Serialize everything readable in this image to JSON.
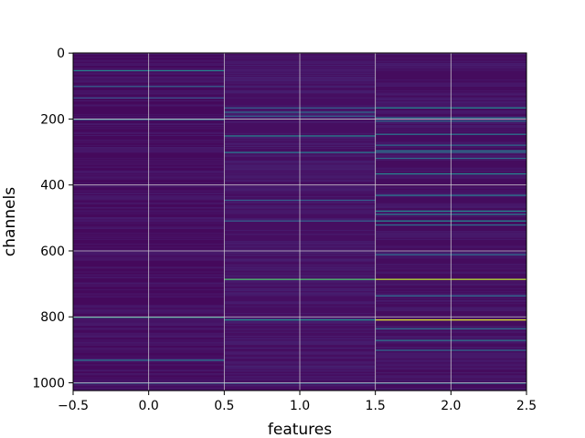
{
  "chart_data": {
    "type": "heatmap",
    "title": "",
    "xlabel": "features",
    "ylabel": "channels",
    "xlim": [
      -0.5,
      2.5
    ],
    "ylim": [
      1023.5,
      -0.5
    ],
    "x_ticks": [
      -0.5,
      0.0,
      0.5,
      1.0,
      1.5,
      2.0,
      2.5
    ],
    "x_tick_labels": [
      "−0.5",
      "0.0",
      "0.5",
      "1.0",
      "1.5",
      "2.0",
      "2.5"
    ],
    "y_ticks": [
      0,
      200,
      400,
      600,
      800,
      1000
    ],
    "y_tick_labels": [
      "0",
      "200",
      "400",
      "600",
      "800",
      "1000"
    ],
    "grid": true,
    "colormap": "viridis",
    "columns": [
      0,
      1,
      2
    ],
    "rows": 1024,
    "value_range": [
      0,
      1
    ],
    "background_levels": [
      0.03,
      0.05,
      0.04
    ],
    "bright_rows": [
      {
        "column": 0,
        "channel": 52,
        "value": 0.45
      },
      {
        "column": 0,
        "channel": 100,
        "value": 0.3
      },
      {
        "column": 0,
        "channel": 135,
        "value": 0.25
      },
      {
        "column": 0,
        "channel": 200,
        "value": 0.4
      },
      {
        "column": 0,
        "channel": 800,
        "value": 0.55
      },
      {
        "column": 0,
        "channel": 930,
        "value": 0.4
      },
      {
        "column": 0,
        "channel": 1000,
        "value": 0.3
      },
      {
        "column": 1,
        "channel": 165,
        "value": 0.3
      },
      {
        "column": 1,
        "channel": 178,
        "value": 0.35
      },
      {
        "column": 1,
        "channel": 190,
        "value": 0.3
      },
      {
        "column": 1,
        "channel": 250,
        "value": 0.45
      },
      {
        "column": 1,
        "channel": 300,
        "value": 0.4
      },
      {
        "column": 1,
        "channel": 445,
        "value": 0.3
      },
      {
        "column": 1,
        "channel": 508,
        "value": 0.3
      },
      {
        "column": 1,
        "channel": 685,
        "value": 0.72
      },
      {
        "column": 1,
        "channel": 808,
        "value": 0.5
      },
      {
        "column": 1,
        "channel": 1000,
        "value": 0.3
      },
      {
        "column": 2,
        "channel": 165,
        "value": 0.45
      },
      {
        "column": 2,
        "channel": 195,
        "value": 0.4
      },
      {
        "column": 2,
        "channel": 205,
        "value": 0.35
      },
      {
        "column": 2,
        "channel": 245,
        "value": 0.4
      },
      {
        "column": 2,
        "channel": 278,
        "value": 0.35
      },
      {
        "column": 2,
        "channel": 295,
        "value": 0.4
      },
      {
        "column": 2,
        "channel": 300,
        "value": 0.35
      },
      {
        "column": 2,
        "channel": 318,
        "value": 0.35
      },
      {
        "column": 2,
        "channel": 365,
        "value": 0.45
      },
      {
        "column": 2,
        "channel": 430,
        "value": 0.4
      },
      {
        "column": 2,
        "channel": 478,
        "value": 0.45
      },
      {
        "column": 2,
        "channel": 488,
        "value": 0.4
      },
      {
        "column": 2,
        "channel": 508,
        "value": 0.45
      },
      {
        "column": 2,
        "channel": 520,
        "value": 0.35
      },
      {
        "column": 2,
        "channel": 610,
        "value": 0.35
      },
      {
        "column": 2,
        "channel": 685,
        "value": 0.9
      },
      {
        "column": 2,
        "channel": 735,
        "value": 0.35
      },
      {
        "column": 2,
        "channel": 808,
        "value": 0.95
      },
      {
        "column": 2,
        "channel": 835,
        "value": 0.35
      },
      {
        "column": 2,
        "channel": 870,
        "value": 0.4
      },
      {
        "column": 2,
        "channel": 900,
        "value": 0.35
      },
      {
        "column": 2,
        "channel": 1000,
        "value": 0.35
      }
    ]
  }
}
